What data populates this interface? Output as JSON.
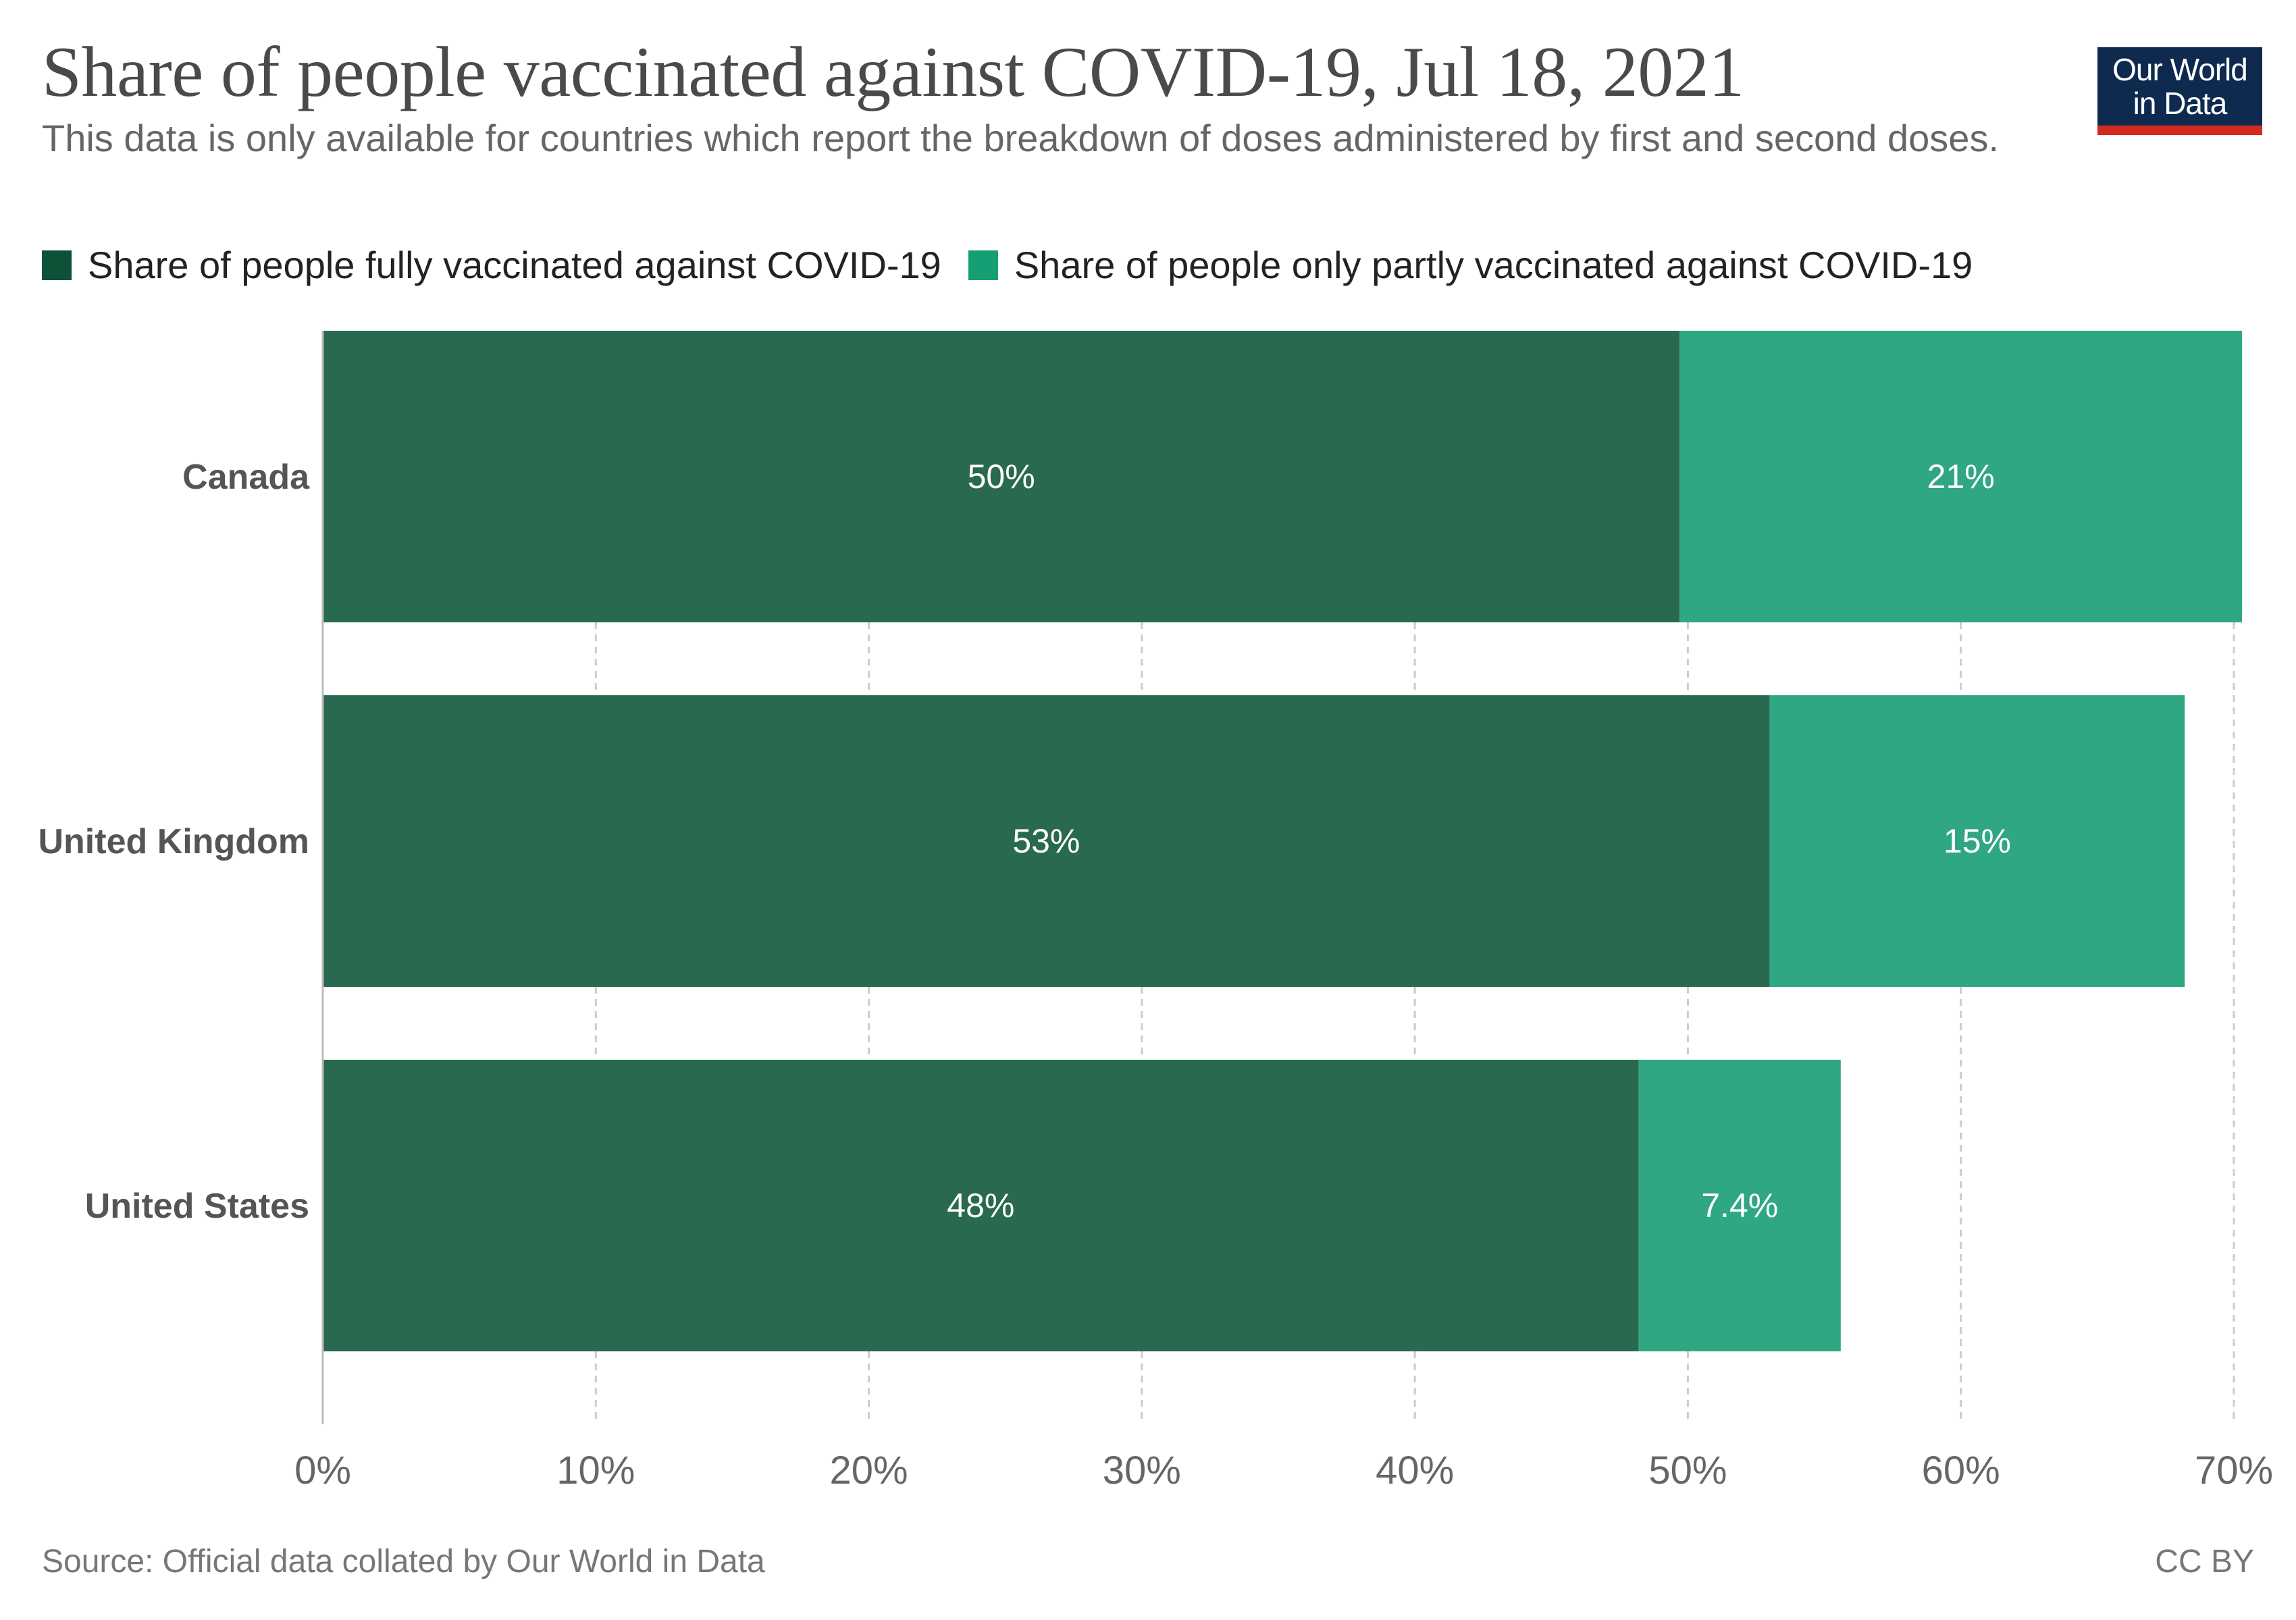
{
  "title": "Share of people vaccinated against COVID-19, Jul 18, 2021",
  "subtitle": "This data is only available for countries which report the breakdown of doses administered by first and second doses.",
  "logo": {
    "line1": "Our World",
    "line2": "in Data"
  },
  "source": "Source: Official data collated by Our World in Data",
  "license": "CC BY",
  "colors": {
    "fully": "#28694f",
    "partly": "#2fa783",
    "legend_fully": "#0d5137",
    "legend_partly": "#169f74",
    "grid": "#cccccc",
    "category_text": "#555555",
    "tick_text": "#666666"
  },
  "chart_data": {
    "type": "bar",
    "orientation": "horizontal",
    "stacked": true,
    "title": "Share of people vaccinated against COVID-19, Jul 18, 2021",
    "categories": [
      "Canada",
      "United Kingdom",
      "United States"
    ],
    "series": [
      {
        "name": "Share of people fully vaccinated against COVID-19",
        "values": [
          49.7,
          53.0,
          48.2
        ],
        "labels": [
          "50%",
          "53%",
          "48%"
        ]
      },
      {
        "name": "Share of people only partly vaccinated against COVID-19",
        "values": [
          20.6,
          15.2,
          7.4
        ],
        "labels": [
          "21%",
          "15%",
          "7.4%"
        ]
      }
    ],
    "xlim": [
      0,
      70
    ],
    "xticks": [
      0,
      10,
      20,
      30,
      40,
      50,
      60,
      70
    ],
    "xtick_labels": [
      "0%",
      "10%",
      "20%",
      "30%",
      "40%",
      "50%",
      "60%",
      "70%"
    ],
    "grid": true,
    "legend_position": "top-left"
  }
}
